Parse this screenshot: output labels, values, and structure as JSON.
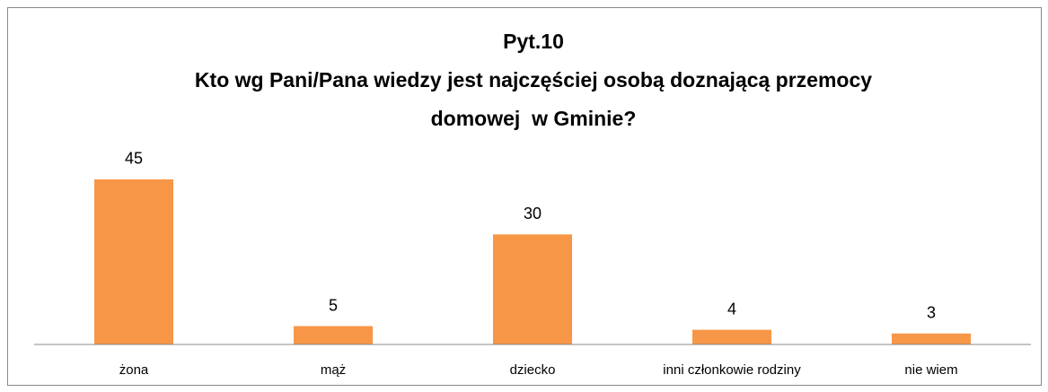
{
  "chart_data": {
    "type": "bar",
    "title": [
      "Pyt.10",
      "Kto wg Pani/Pana wiedzy jest najczęściej osobą doznającą przemocy",
      "domowej  w Gminie?"
    ],
    "categories": [
      "żona",
      "mąż",
      "dziecko",
      "inni członkowie rodziny",
      "nie wiem"
    ],
    "values": [
      45,
      5,
      30,
      4,
      3
    ],
    "color": "#f79646",
    "ylim": [
      0,
      50
    ]
  }
}
